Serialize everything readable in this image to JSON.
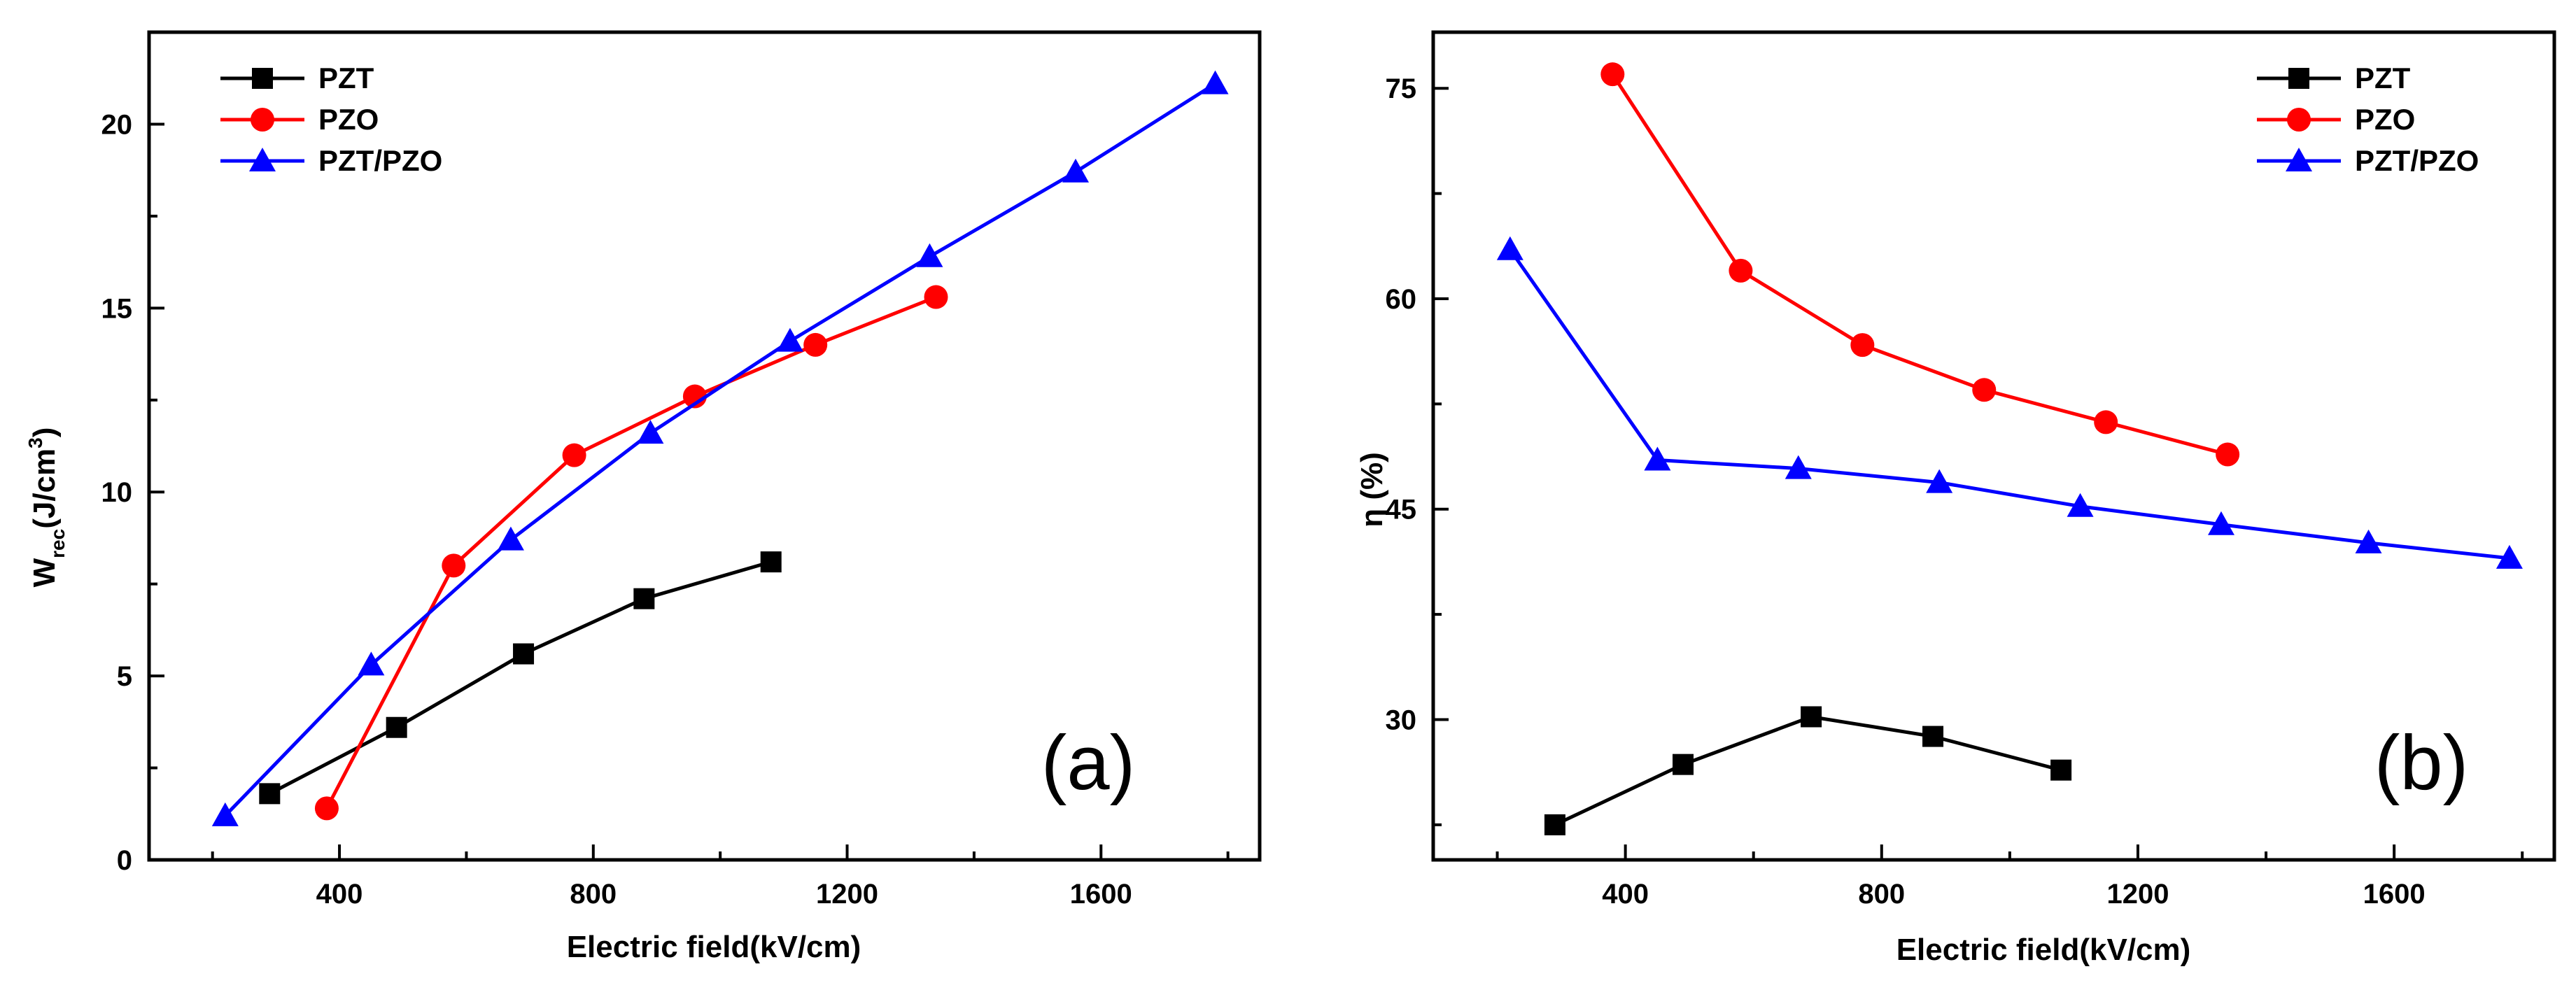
{
  "chart_data": [
    {
      "type": "line",
      "panel_label": "(a)",
      "xlabel": "Electric field(kV/cm)",
      "ylabel_main": "W",
      "ylabel_sub": "rec",
      "ylabel_unit": "(J/cm",
      "ylabel_sup": "3",
      "ylabel_close": ")",
      "xlim": [
        100,
        1850
      ],
      "ylim": [
        0,
        22.5
      ],
      "xticks": [
        400,
        800,
        1200,
        1600
      ],
      "yticks": [
        0,
        5,
        10,
        15,
        20
      ],
      "xtick_labels": [
        "400",
        "800",
        "1200",
        "1600"
      ],
      "ytick_labels": [
        "0",
        "5",
        "10",
        "15",
        "20"
      ],
      "legend_position": "top-left",
      "series": [
        {
          "name": "PZT",
          "color": "#000000",
          "marker": "square",
          "x": [
            290,
            490,
            690,
            880,
            1080
          ],
          "y": [
            1.8,
            3.6,
            5.6,
            7.1,
            8.1
          ]
        },
        {
          "name": "PZO",
          "color": "#ff0000",
          "marker": "circle",
          "x": [
            380,
            580,
            770,
            960,
            1150,
            1340
          ],
          "y": [
            1.4,
            8.0,
            11.0,
            12.6,
            14.0,
            15.3
          ]
        },
        {
          "name": "PZT/PZO",
          "color": "#0000ff",
          "marker": "triangle",
          "x": [
            220,
            450,
            670,
            890,
            1110,
            1330,
            1560,
            1780
          ],
          "y": [
            1.2,
            5.3,
            8.7,
            11.6,
            14.1,
            16.4,
            18.7,
            21.1
          ]
        }
      ]
    },
    {
      "type": "line",
      "panel_label": "(b)",
      "xlabel": "Electric field(kV/cm)",
      "ylabel": "η (%)",
      "xlim": [
        100,
        1850
      ],
      "ylim": [
        20,
        79
      ],
      "xticks": [
        400,
        800,
        1200,
        1600
      ],
      "yticks": [
        30,
        45,
        60,
        75
      ],
      "xtick_labels": [
        "400",
        "800",
        "1200",
        "1600"
      ],
      "ytick_labels": [
        "30",
        "45",
        "60",
        "75"
      ],
      "legend_position": "top-right",
      "series": [
        {
          "name": "PZT",
          "color": "#000000",
          "marker": "square",
          "x": [
            290,
            490,
            690,
            880,
            1080
          ],
          "y": [
            22.5,
            26.8,
            30.2,
            28.8,
            26.4
          ]
        },
        {
          "name": "PZO",
          "color": "#ff0000",
          "marker": "circle",
          "x": [
            380,
            580,
            770,
            960,
            1150,
            1340
          ],
          "y": [
            76.0,
            62.0,
            56.7,
            53.5,
            51.2,
            48.9
          ]
        },
        {
          "name": "PZT/PZO",
          "color": "#0000ff",
          "marker": "triangle",
          "x": [
            220,
            450,
            670,
            890,
            1110,
            1330,
            1560,
            1780
          ],
          "y": [
            63.5,
            48.5,
            47.9,
            46.9,
            45.2,
            43.9,
            42.6,
            41.5
          ]
        }
      ]
    }
  ]
}
